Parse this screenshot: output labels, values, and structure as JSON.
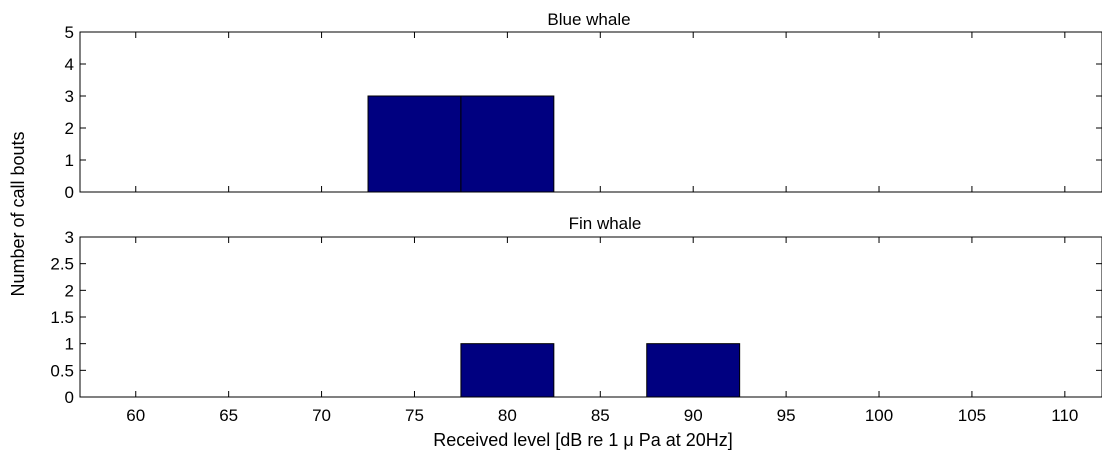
{
  "chart_data": [
    {
      "type": "bar",
      "title": "Blue whale",
      "bin_width": 5,
      "bins": [
        {
          "start": 72.5,
          "end": 77.5,
          "count": 3
        },
        {
          "start": 77.5,
          "end": 82.5,
          "count": 3
        }
      ],
      "xlim": [
        57,
        112
      ],
      "ylim": [
        0,
        5
      ],
      "xticks": [
        60,
        65,
        70,
        75,
        80,
        85,
        90,
        95,
        100,
        105,
        110
      ],
      "yticks": [
        0,
        1,
        2,
        3,
        4,
        5
      ],
      "ytick_labels": [
        "0",
        "1",
        "2",
        "3",
        "4",
        "5"
      ],
      "bar_color": "#000080",
      "grid": false
    },
    {
      "type": "bar",
      "title": "Fin whale",
      "bin_width": 5,
      "bins": [
        {
          "start": 77.5,
          "end": 82.5,
          "count": 1
        },
        {
          "start": 87.5,
          "end": 92.5,
          "count": 1
        }
      ],
      "xlim": [
        57,
        112
      ],
      "ylim": [
        0,
        3
      ],
      "xticks": [
        60,
        65,
        70,
        75,
        80,
        85,
        90,
        95,
        100,
        105,
        110
      ],
      "xtick_labels": [
        "60",
        "65",
        "70",
        "75",
        "80",
        "85",
        "90",
        "95",
        "100",
        "105",
        "110"
      ],
      "yticks": [
        0,
        0.5,
        1,
        1.5,
        2,
        2.5,
        3
      ],
      "ytick_labels": [
        "0",
        "0.5",
        "1",
        "1.5",
        "2",
        "2.5",
        "3"
      ],
      "bar_color": "#000080",
      "grid": false
    }
  ],
  "axes_labels": {
    "ylabel": "Number of call bouts",
    "xlabel": "Received level [dB re 1 μ Pa at 20Hz]"
  }
}
